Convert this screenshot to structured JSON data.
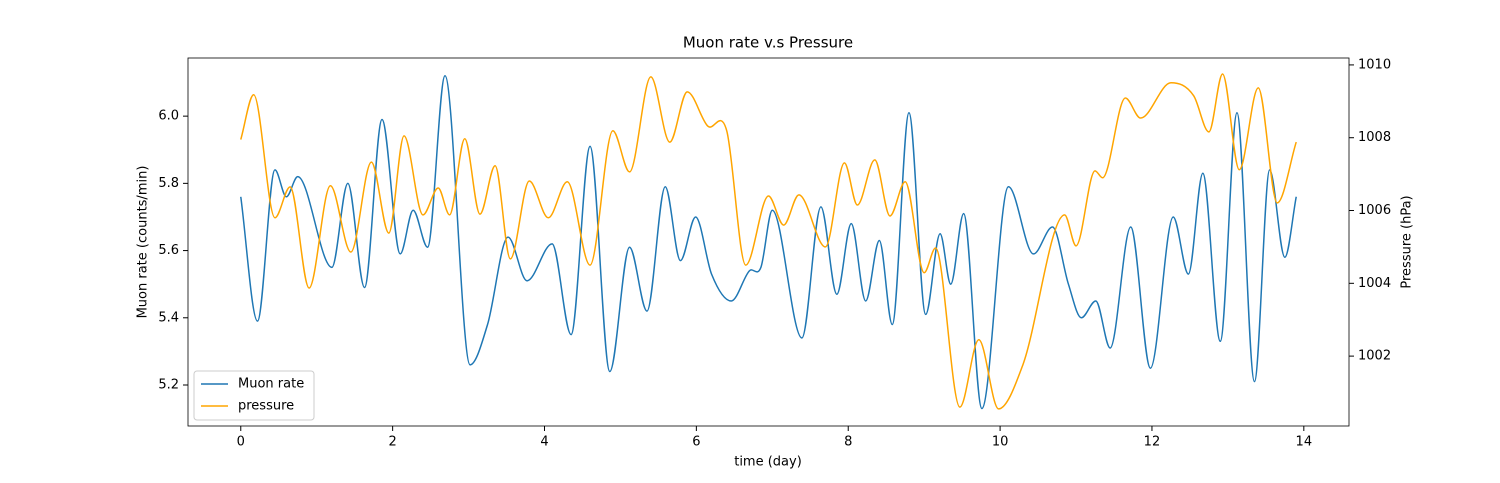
{
  "chart_data": {
    "type": "line",
    "title": "Muon rate v.s Pressure",
    "xlabel": "time (day)",
    "ylabel": "Muon rate (counts/min)",
    "y2label": "Pressure (hPa)",
    "xlim": [
      -0.695,
      14.595
    ],
    "xticks": [
      0,
      2,
      4,
      6,
      8,
      10,
      12,
      14
    ],
    "ylim": [
      5.078,
      6.173
    ],
    "yticks": [
      5.2,
      5.4,
      5.6,
      5.8,
      {
        "value": 6,
        "label": "6.0"
      }
    ],
    "y2lim": [
      1000.08,
      1010.19
    ],
    "y2ticks": [
      1002,
      1004,
      1006,
      1008,
      1010
    ],
    "grid": false,
    "legend": "lower left",
    "series": [
      {
        "name": "Muon rate",
        "color": "#1f77b4",
        "axis": "y",
        "x": [
          0,
          0.22,
          0.45,
          0.6,
          0.75,
          1.2,
          1.41,
          1.63,
          1.86,
          2.1,
          2.27,
          2.46,
          2.69,
          3.02,
          3.25,
          3.52,
          3.77,
          4.1,
          4.35,
          4.6,
          4.86,
          5.12,
          5.35,
          5.59,
          5.79,
          5.99,
          6.2,
          6.46,
          6.7,
          6.85,
          7.0,
          7.39,
          7.64,
          7.85,
          8.04,
          8.23,
          8.41,
          8.58,
          8.8,
          9.02,
          9.21,
          9.35,
          9.52,
          9.76,
          10.11,
          10.44,
          10.69,
          10.9,
          11.07,
          11.26,
          11.45,
          11.72,
          11.98,
          12.28,
          12.48,
          12.67,
          12.9,
          13.12,
          13.35,
          13.55,
          13.75,
          13.9
        ],
        "values": [
          5.76,
          5.39,
          5.84,
          5.76,
          5.82,
          5.55,
          5.8,
          5.49,
          5.99,
          5.59,
          5.72,
          5.61,
          6.12,
          5.26,
          5.38,
          5.64,
          5.51,
          5.62,
          5.35,
          5.91,
          5.24,
          5.61,
          5.42,
          5.79,
          5.57,
          5.7,
          5.53,
          5.45,
          5.54,
          5.55,
          5.72,
          5.34,
          5.73,
          5.47,
          5.68,
          5.45,
          5.63,
          5.38,
          6.01,
          5.41,
          5.65,
          5.5,
          5.71,
          5.13,
          5.79,
          5.59,
          5.67,
          5.5,
          5.4,
          5.45,
          5.31,
          5.67,
          5.25,
          5.7,
          5.53,
          5.83,
          5.33,
          6.01,
          5.21,
          5.84,
          5.58,
          5.76
        ]
      },
      {
        "name": "pressure",
        "color": "#ffa500",
        "axis": "y2",
        "x": [
          0,
          0.17,
          0.45,
          0.65,
          0.9,
          1.18,
          1.45,
          1.72,
          1.95,
          2.15,
          2.4,
          2.6,
          2.75,
          2.95,
          3.15,
          3.35,
          3.55,
          3.8,
          4.05,
          4.3,
          4.6,
          4.9,
          5.12,
          5.4,
          5.65,
          5.88,
          6.15,
          6.4,
          6.65,
          6.95,
          7.15,
          7.35,
          7.7,
          7.95,
          8.12,
          8.35,
          8.55,
          8.75,
          9.0,
          9.15,
          9.47,
          9.72,
          9.98,
          10.3,
          10.85,
          11.0,
          11.25,
          11.35,
          11.65,
          11.85,
          12.25,
          12.55,
          12.75,
          12.93,
          13.15,
          13.4,
          13.65,
          13.9
        ],
        "values": [
          1007.95,
          1009.18,
          1005.8,
          1006.65,
          1003.87,
          1006.68,
          1004.86,
          1007.33,
          1005.38,
          1008.05,
          1005.88,
          1006.62,
          1005.88,
          1007.97,
          1005.9,
          1007.23,
          1004.67,
          1006.81,
          1005.8,
          1006.79,
          1004.5,
          1008.19,
          1007.06,
          1009.67,
          1007.88,
          1009.26,
          1008.32,
          1008.19,
          1004.5,
          1006.4,
          1005.6,
          1006.43,
          1005.0,
          1007.31,
          1006.15,
          1007.39,
          1005.85,
          1006.79,
          1004.29,
          1004.97,
          1000.6,
          1002.45,
          1000.55,
          1001.76,
          1005.88,
          1005.03,
          1007.09,
          1006.9,
          1009.09,
          1008.54,
          1009.51,
          1009.15,
          1008.16,
          1009.75,
          1007.12,
          1009.37,
          1006.21,
          1007.88
        ]
      }
    ]
  }
}
